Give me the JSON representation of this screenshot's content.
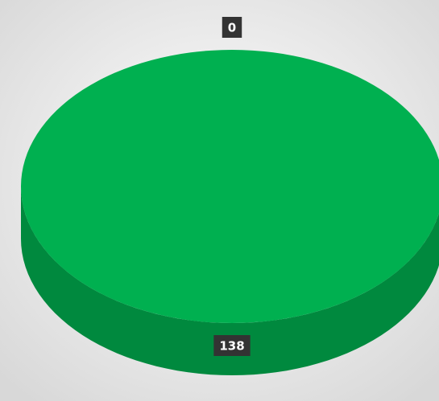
{
  "chart_data": {
    "type": "pie3d",
    "categories": [
      null,
      null
    ],
    "values": [
      0,
      138
    ],
    "colors": [
      "#e0403a",
      "#00b050"
    ]
  }
}
